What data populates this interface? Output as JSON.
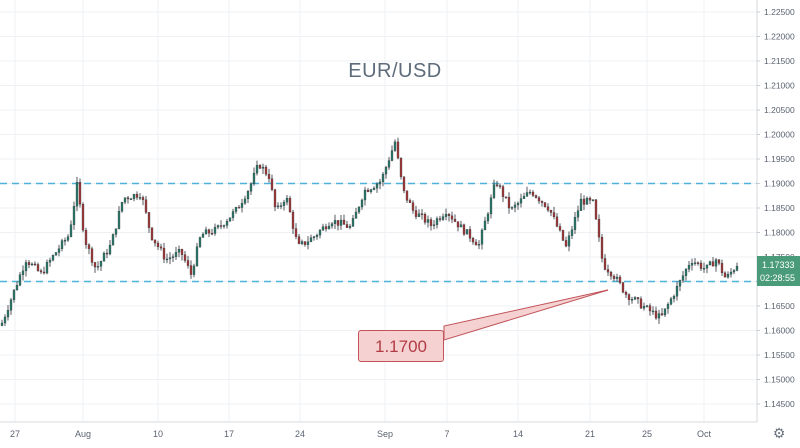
{
  "chart_data": {
    "type": "candlestick",
    "title": "EUR/USD",
    "x_ticks": [
      "27",
      "Aug",
      "10",
      "17",
      "24",
      "Sep",
      "7",
      "14",
      "21",
      "25",
      "Oct"
    ],
    "y_ticks": [
      "1.22500",
      "1.22000",
      "1.21500",
      "1.21000",
      "1.20500",
      "1.20000",
      "1.19500",
      "1.19000",
      "1.18500",
      "1.18000",
      "1.17500",
      "1.17000",
      "1.16500",
      "1.16000",
      "1.15500",
      "1.15000",
      "1.14500"
    ],
    "ylim": [
      1.1425,
      1.2265
    ],
    "current_price": "1.17333",
    "countdown": "02:28:55",
    "horizontal_lines": [
      1.19,
      1.17
    ],
    "annotation": {
      "text": "1.1700"
    },
    "close_path": [
      {
        "x": 0,
        "y": 1.161
      },
      {
        "x": 12,
        "y": 1.1675
      },
      {
        "x": 25,
        "y": 1.1745
      },
      {
        "x": 40,
        "y": 1.1715
      },
      {
        "x": 55,
        "y": 1.176
      },
      {
        "x": 68,
        "y": 1.1795
      },
      {
        "x": 76,
        "y": 1.1895
      },
      {
        "x": 84,
        "y": 1.1785
      },
      {
        "x": 95,
        "y": 1.1725
      },
      {
        "x": 110,
        "y": 1.1775
      },
      {
        "x": 122,
        "y": 1.187
      },
      {
        "x": 140,
        "y": 1.188
      },
      {
        "x": 150,
        "y": 1.1795
      },
      {
        "x": 165,
        "y": 1.1745
      },
      {
        "x": 180,
        "y": 1.176
      },
      {
        "x": 190,
        "y": 1.1715
      },
      {
        "x": 200,
        "y": 1.1795
      },
      {
        "x": 215,
        "y": 1.1805
      },
      {
        "x": 235,
        "y": 1.1845
      },
      {
        "x": 248,
        "y": 1.189
      },
      {
        "x": 258,
        "y": 1.194
      },
      {
        "x": 268,
        "y": 1.1915
      },
      {
        "x": 275,
        "y": 1.184
      },
      {
        "x": 285,
        "y": 1.1875
      },
      {
        "x": 297,
        "y": 1.177
      },
      {
        "x": 312,
        "y": 1.179
      },
      {
        "x": 330,
        "y": 1.1825
      },
      {
        "x": 350,
        "y": 1.181
      },
      {
        "x": 363,
        "y": 1.1885
      },
      {
        "x": 380,
        "y": 1.1905
      },
      {
        "x": 394,
        "y": 1.1985
      },
      {
        "x": 402,
        "y": 1.1885
      },
      {
        "x": 412,
        "y": 1.1845
      },
      {
        "x": 430,
        "y": 1.1815
      },
      {
        "x": 445,
        "y": 1.1845
      },
      {
        "x": 460,
        "y": 1.181
      },
      {
        "x": 478,
        "y": 1.1775
      },
      {
        "x": 495,
        "y": 1.1905
      },
      {
        "x": 510,
        "y": 1.1845
      },
      {
        "x": 530,
        "y": 1.1885
      },
      {
        "x": 548,
        "y": 1.185
      },
      {
        "x": 565,
        "y": 1.177
      },
      {
        "x": 580,
        "y": 1.1865
      },
      {
        "x": 592,
        "y": 1.186
      },
      {
        "x": 602,
        "y": 1.1735
      },
      {
        "x": 612,
        "y": 1.1715
      },
      {
        "x": 625,
        "y": 1.1675
      },
      {
        "x": 645,
        "y": 1.1645
      },
      {
        "x": 660,
        "y": 1.1625
      },
      {
        "x": 678,
        "y": 1.1695
      },
      {
        "x": 690,
        "y": 1.1745
      },
      {
        "x": 705,
        "y": 1.1725
      },
      {
        "x": 715,
        "y": 1.1745
      },
      {
        "x": 725,
        "y": 1.1705
      },
      {
        "x": 736,
        "y": 1.1735
      }
    ]
  },
  "colors": {
    "up": "#2d7a6a",
    "down": "#a23a3a",
    "grid": "#eef0f3",
    "hline": "#4fb3d9",
    "annotation_line": "#c0545a",
    "price_label_bg": "#4a9b7a",
    "axis_text": "#5a6270"
  },
  "icons": {
    "settings": "gear-icon"
  }
}
